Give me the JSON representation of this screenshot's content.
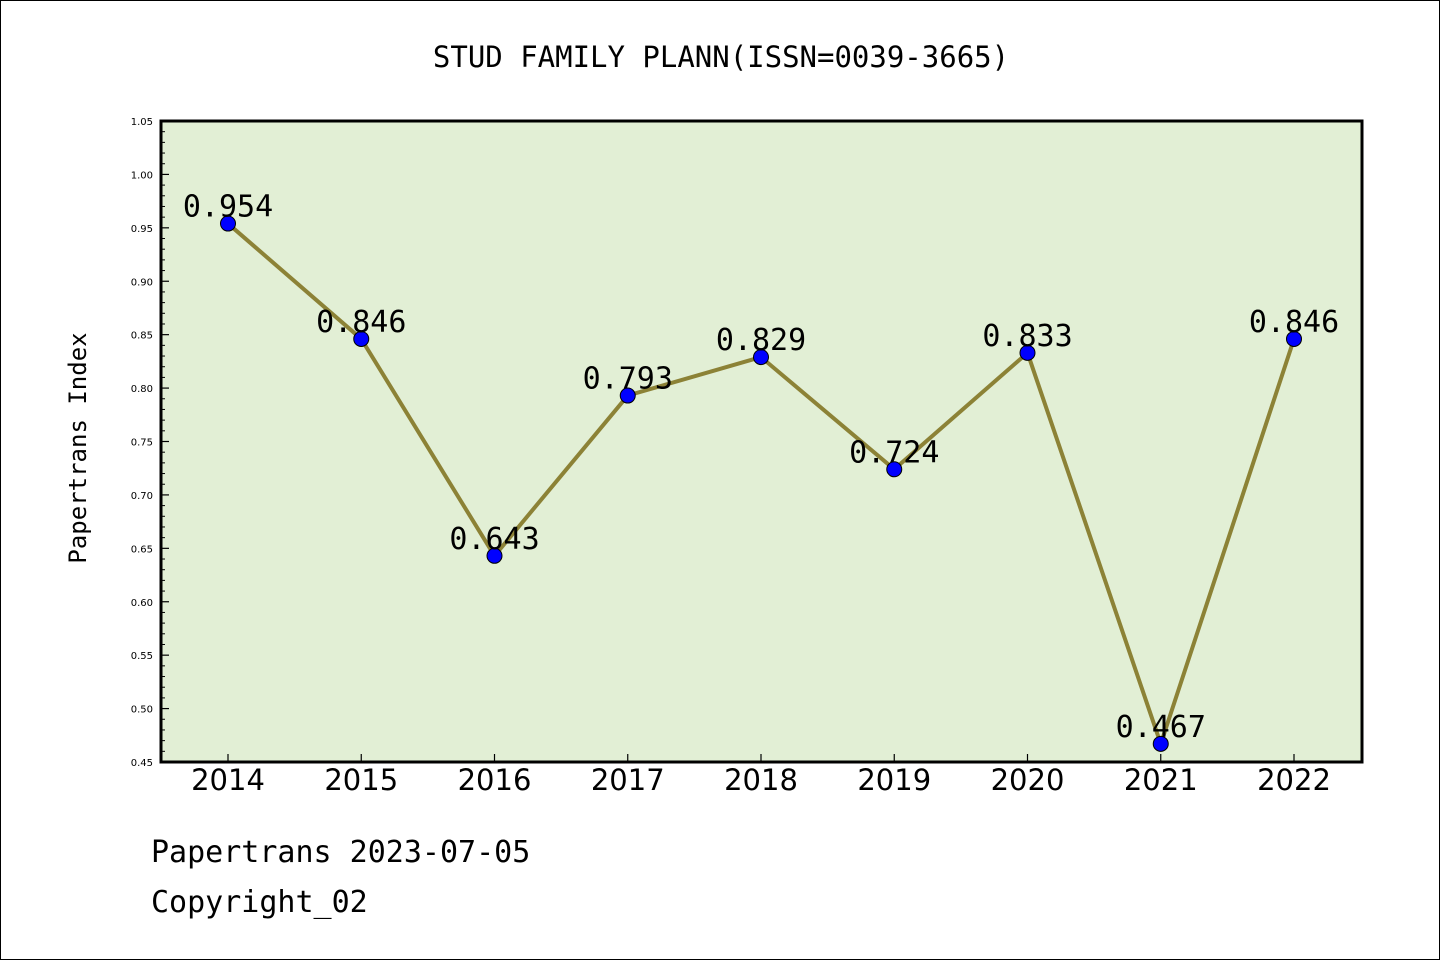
{
  "chart_data": {
    "type": "line",
    "title": "STUD FAMILY PLANN(ISSN=0039-3665)",
    "xlabel": "",
    "ylabel": "Papertrans Index",
    "categories": [
      "2014",
      "2015",
      "2016",
      "2017",
      "2018",
      "2019",
      "2020",
      "2021",
      "2022"
    ],
    "values": [
      0.954,
      0.846,
      0.643,
      0.793,
      0.829,
      0.724,
      0.833,
      0.467,
      0.846
    ],
    "value_labels": [
      "0.954",
      "0.846",
      "0.643",
      "0.793",
      "0.829",
      "0.724",
      "0.833",
      "0.467",
      "0.846"
    ],
    "ylim": [
      0.45,
      1.05
    ],
    "yticks": [
      0.45,
      0.5,
      0.55,
      0.6,
      0.65,
      0.7,
      0.75,
      0.8,
      0.85,
      0.9,
      0.95,
      1.0,
      1.05
    ],
    "ytick_labels": [
      "0.45",
      "0.50",
      "0.55",
      "0.60",
      "0.65",
      "0.70",
      "0.75",
      "0.80",
      "0.85",
      "0.90",
      "0.95",
      "1.00",
      "1.05"
    ],
    "grid": false,
    "colors": {
      "line": "#8c8236",
      "marker": "#0000ff",
      "plot_background": "#e2efd5"
    }
  },
  "footer": {
    "date_line": "Papertrans 2023-07-05",
    "copyright": "Copyright_02"
  }
}
